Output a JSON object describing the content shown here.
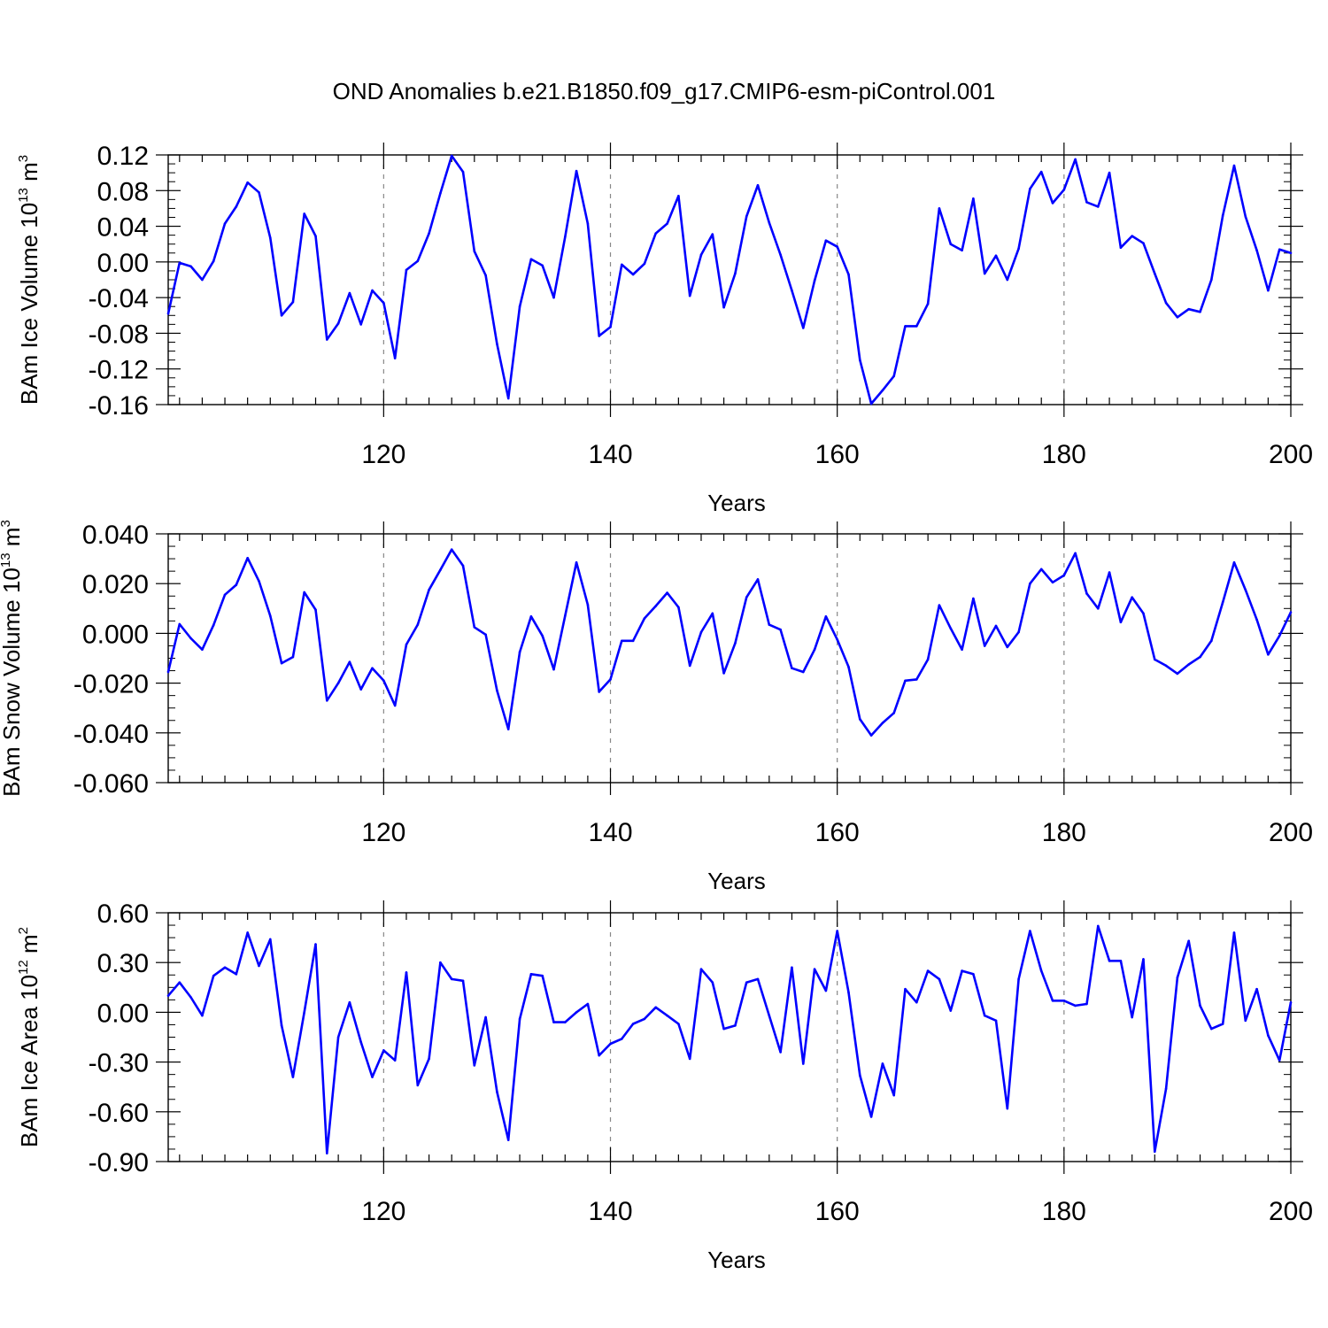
{
  "figure_title": "OND Anomalies b.e21.B1850.f09_g17.CMIP6-esm-piControl.001",
  "colors": {
    "line": "#0000ff",
    "axis": "#000000",
    "grid": "#888888"
  },
  "chart_data": [
    {
      "type": "line",
      "title": "OND Anomalies b.e21.B1850.f09_g17.CMIP6-esm-piControl.001",
      "ylabel": {
        "prefix": "BAm Ice Volume 10",
        "exponent": "13",
        "unit": " m",
        "unit_exponent": "3"
      },
      "xlabel": "Years",
      "xlim": [
        101,
        200
      ],
      "ylim": [
        -0.16,
        0.12
      ],
      "xticks": [
        120,
        140,
        160,
        180,
        200
      ],
      "xtick_labels": [
        "120",
        "140",
        "160",
        "180",
        "200"
      ],
      "yticks": [
        -0.16,
        -0.12,
        -0.08,
        -0.04,
        0.0,
        0.04,
        0.08,
        0.12
      ],
      "ytick_labels": [
        "-0.16",
        "-0.12",
        "-0.08",
        "-0.04",
        "0.00",
        "0.04",
        "0.08",
        "0.12"
      ],
      "grid": "vertical dashed",
      "x_start": 101,
      "values": [
        -0.058,
        -0.001,
        -0.005,
        -0.02,
        0.001,
        0.043,
        0.062,
        0.089,
        0.078,
        0.027,
        -0.06,
        -0.045,
        0.054,
        0.029,
        -0.087,
        -0.069,
        -0.035,
        -0.07,
        -0.032,
        -0.046,
        -0.108,
        -0.009,
        0.001,
        0.032,
        0.077,
        0.119,
        0.101,
        0.012,
        -0.015,
        -0.092,
        -0.153,
        -0.05,
        0.003,
        -0.004,
        -0.04,
        0.028,
        0.102,
        0.043,
        -0.083,
        -0.073,
        -0.003,
        -0.014,
        -0.002,
        0.032,
        0.043,
        0.074,
        -0.038,
        0.008,
        0.031,
        -0.051,
        -0.013,
        0.051,
        0.086,
        0.044,
        0.008,
        -0.032,
        -0.074,
        -0.021,
        0.024,
        0.017,
        -0.014,
        -0.11,
        -0.159,
        -0.144,
        -0.128,
        -0.072,
        -0.072,
        -0.047,
        0.06,
        0.02,
        0.013,
        0.071,
        -0.013,
        0.007,
        -0.02,
        0.015,
        0.082,
        0.101,
        0.066,
        0.081,
        0.115,
        0.067,
        0.062,
        0.1,
        0.016,
        0.029,
        0.021,
        -0.013,
        -0.046,
        -0.062,
        -0.053,
        -0.056,
        -0.02,
        0.052,
        0.108,
        0.051,
        0.013,
        -0.032,
        0.014,
        0.01
      ]
    },
    {
      "type": "line",
      "ylabel": {
        "prefix": "BAm Snow Volume 10",
        "exponent": "13",
        "unit": " m",
        "unit_exponent": "3"
      },
      "xlabel": "Years",
      "xlim": [
        101,
        200
      ],
      "ylim": [
        -0.06,
        0.04
      ],
      "xticks": [
        120,
        140,
        160,
        180,
        200
      ],
      "xtick_labels": [
        "120",
        "140",
        "160",
        "180",
        "200"
      ],
      "yticks": [
        -0.06,
        -0.04,
        -0.02,
        0.0,
        0.02,
        0.04
      ],
      "ytick_labels": [
        "-0.060",
        "-0.040",
        "-0.020",
        "0.000",
        "0.020",
        "0.040"
      ],
      "grid": "vertical dashed",
      "x_start": 101,
      "values": [
        -0.0155,
        0.0037,
        -0.002,
        -0.0065,
        0.0033,
        0.0155,
        0.0195,
        0.0303,
        0.021,
        0.007,
        -0.012,
        -0.0095,
        0.0165,
        0.0095,
        -0.027,
        -0.02,
        -0.0115,
        -0.0225,
        -0.014,
        -0.019,
        -0.029,
        -0.0045,
        0.0035,
        0.0175,
        0.0255,
        0.0337,
        0.0272,
        0.0025,
        -0.0005,
        -0.023,
        -0.0385,
        -0.0075,
        0.0068,
        -0.001,
        -0.0145,
        0.007,
        0.0285,
        0.0115,
        -0.0235,
        -0.0185,
        -0.003,
        -0.003,
        0.006,
        0.011,
        0.0163,
        0.0105,
        -0.013,
        0.0005,
        0.008,
        -0.016,
        -0.004,
        0.0145,
        0.0217,
        0.0035,
        0.0015,
        -0.014,
        -0.0155,
        -0.0065,
        0.0068,
        -0.0025,
        -0.0135,
        -0.0345,
        -0.041,
        -0.036,
        -0.032,
        -0.019,
        -0.0185,
        -0.0105,
        0.0113,
        0.002,
        -0.0065,
        0.014,
        -0.005,
        0.003,
        -0.0055,
        0.0005,
        0.02,
        0.0258,
        0.0205,
        0.0233,
        0.0322,
        0.016,
        0.01,
        0.0245,
        0.0045,
        0.0145,
        0.008,
        -0.0105,
        -0.013,
        -0.0162,
        -0.0125,
        -0.0095,
        -0.003,
        0.0125,
        0.0285,
        0.0175,
        0.0055,
        -0.0085,
        -0.001,
        0.0085
      ]
    },
    {
      "type": "line",
      "ylabel": {
        "prefix": "BAm Ice Area 10",
        "exponent": "12",
        "unit": " m",
        "unit_exponent": "2"
      },
      "xlabel": "Years",
      "xlim": [
        101,
        200
      ],
      "ylim": [
        -0.9,
        0.6
      ],
      "xticks": [
        120,
        140,
        160,
        180,
        200
      ],
      "xtick_labels": [
        "120",
        "140",
        "160",
        "180",
        "200"
      ],
      "yticks": [
        -0.9,
        -0.6,
        -0.3,
        0.0,
        0.3,
        0.6
      ],
      "ytick_labels": [
        "-0.90",
        "-0.60",
        "-0.30",
        "0.00",
        "0.30",
        "0.60"
      ],
      "grid": "vertical dashed",
      "x_start": 101,
      "values": [
        0.1,
        0.18,
        0.09,
        -0.02,
        0.22,
        0.27,
        0.23,
        0.48,
        0.28,
        0.44,
        -0.08,
        -0.39,
        0.0,
        0.41,
        -0.85,
        -0.15,
        0.06,
        -0.18,
        -0.39,
        -0.23,
        -0.29,
        0.24,
        -0.44,
        -0.28,
        0.3,
        0.2,
        0.19,
        -0.32,
        -0.03,
        -0.48,
        -0.77,
        -0.04,
        0.23,
        0.22,
        -0.06,
        -0.06,
        0.0,
        0.05,
        -0.26,
        -0.19,
        -0.16,
        -0.07,
        -0.04,
        0.03,
        -0.02,
        -0.07,
        -0.28,
        0.26,
        0.18,
        -0.1,
        -0.08,
        0.18,
        0.2,
        -0.02,
        -0.24,
        0.27,
        -0.31,
        0.26,
        0.13,
        0.49,
        0.12,
        -0.38,
        -0.63,
        -0.31,
        -0.5,
        0.14,
        0.06,
        0.25,
        0.2,
        0.01,
        0.25,
        0.23,
        -0.02,
        -0.05,
        -0.58,
        0.2,
        0.49,
        0.25,
        0.07,
        0.07,
        0.04,
        0.05,
        0.52,
        0.31,
        0.31,
        -0.03,
        0.32,
        -0.84,
        -0.46,
        0.21,
        0.43,
        0.04,
        -0.1,
        -0.07,
        0.48,
        -0.05,
        0.14,
        -0.14,
        -0.29,
        0.06
      ]
    }
  ]
}
